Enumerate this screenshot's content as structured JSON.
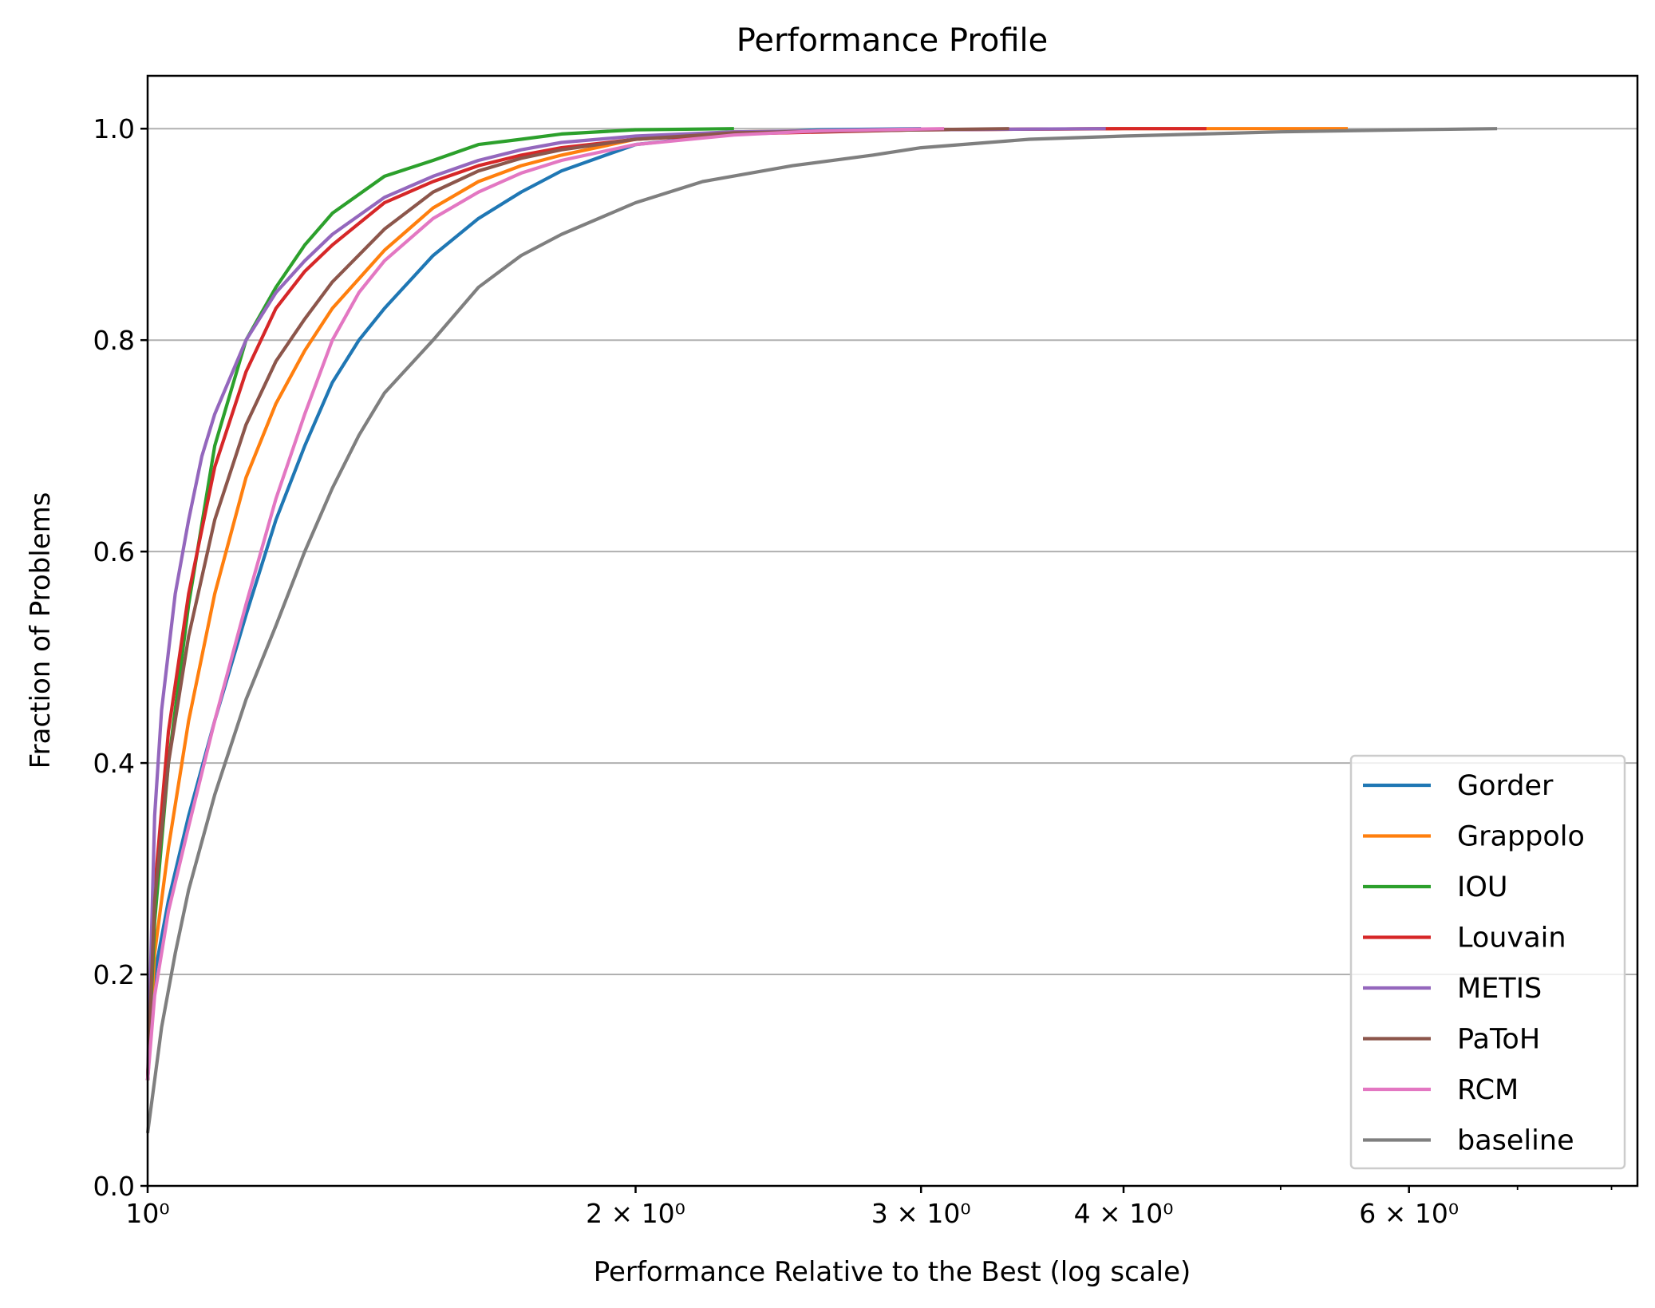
{
  "chart_data": {
    "type": "line",
    "title": "Performance Profile",
    "xlabel": "Performance Relative to the Best (log scale)",
    "ylabel": "Fraction of Problems",
    "xscale": "log",
    "xlim": [
      1.0,
      8.3
    ],
    "ylim": [
      0.0,
      1.05
    ],
    "grid": "y-major",
    "legend_position": "lower-right",
    "x_ticks": [
      {
        "value": 1,
        "label": "10⁰"
      },
      {
        "value": 2,
        "label": "2 × 10⁰"
      },
      {
        "value": 3,
        "label": "3 × 10⁰"
      },
      {
        "value": 4,
        "label": "4 × 10⁰"
      },
      {
        "value": 6,
        "label": "6 × 10⁰"
      }
    ],
    "x_minor_ticks": [
      5,
      7,
      8
    ],
    "y_ticks": [
      {
        "value": 0.0,
        "label": "0.0"
      },
      {
        "value": 0.2,
        "label": "0.2"
      },
      {
        "value": 0.4,
        "label": "0.4"
      },
      {
        "value": 0.6,
        "label": "0.6"
      },
      {
        "value": 0.8,
        "label": "0.8"
      },
      {
        "value": 1.0,
        "label": "1.0"
      }
    ],
    "series": [
      {
        "name": "Gorder",
        "color": "#1f77b4",
        "x": [
          1.0,
          1.01,
          1.03,
          1.06,
          1.1,
          1.15,
          1.2,
          1.25,
          1.3,
          1.35,
          1.4,
          1.5,
          1.6,
          1.7,
          1.8,
          2.0,
          2.3,
          2.6,
          3.0
        ],
        "y": [
          0.1,
          0.2,
          0.27,
          0.35,
          0.44,
          0.54,
          0.63,
          0.7,
          0.76,
          0.8,
          0.83,
          0.88,
          0.915,
          0.94,
          0.96,
          0.985,
          0.995,
          0.999,
          1.0
        ]
      },
      {
        "name": "Grappolo",
        "color": "#ff7f0e",
        "x": [
          1.0,
          1.01,
          1.03,
          1.06,
          1.1,
          1.15,
          1.2,
          1.25,
          1.3,
          1.4,
          1.5,
          1.6,
          1.7,
          1.8,
          2.0,
          2.3,
          3.0,
          4.0,
          5.5
        ],
        "y": [
          0.1,
          0.22,
          0.32,
          0.44,
          0.56,
          0.67,
          0.74,
          0.79,
          0.83,
          0.885,
          0.925,
          0.95,
          0.965,
          0.975,
          0.99,
          0.997,
          0.999,
          1.0,
          1.0
        ]
      },
      {
        "name": "IOU",
        "color": "#2ca02c",
        "x": [
          1.0,
          1.01,
          1.03,
          1.06,
          1.1,
          1.15,
          1.2,
          1.25,
          1.3,
          1.4,
          1.5,
          1.6,
          1.7,
          1.8,
          2.0,
          2.3
        ],
        "y": [
          0.1,
          0.25,
          0.4,
          0.55,
          0.7,
          0.8,
          0.85,
          0.89,
          0.92,
          0.955,
          0.97,
          0.985,
          0.99,
          0.995,
          0.999,
          1.0
        ]
      },
      {
        "name": "Louvain",
        "color": "#d62728",
        "x": [
          1.0,
          1.01,
          1.03,
          1.06,
          1.1,
          1.15,
          1.2,
          1.25,
          1.3,
          1.4,
          1.5,
          1.6,
          1.7,
          1.8,
          2.0,
          2.3,
          3.0,
          4.0,
          4.5
        ],
        "y": [
          0.1,
          0.28,
          0.43,
          0.56,
          0.68,
          0.77,
          0.83,
          0.865,
          0.89,
          0.93,
          0.95,
          0.965,
          0.975,
          0.982,
          0.99,
          0.995,
          0.999,
          1.0,
          1.0
        ]
      },
      {
        "name": "METIS",
        "color": "#9467bd",
        "x": [
          1.0,
          1.01,
          1.02,
          1.04,
          1.06,
          1.08,
          1.1,
          1.15,
          1.2,
          1.25,
          1.3,
          1.4,
          1.5,
          1.6,
          1.7,
          1.8,
          2.0,
          2.3,
          3.0,
          3.9
        ],
        "y": [
          0.1,
          0.35,
          0.45,
          0.56,
          0.63,
          0.69,
          0.73,
          0.8,
          0.845,
          0.875,
          0.9,
          0.935,
          0.955,
          0.97,
          0.98,
          0.987,
          0.993,
          0.997,
          0.999,
          1.0
        ]
      },
      {
        "name": "PaToH",
        "color": "#8c564b",
        "x": [
          1.0,
          1.01,
          1.03,
          1.06,
          1.1,
          1.15,
          1.2,
          1.25,
          1.3,
          1.4,
          1.5,
          1.6,
          1.7,
          1.8,
          2.0,
          2.3,
          3.0,
          3.4
        ],
        "y": [
          0.1,
          0.27,
          0.4,
          0.52,
          0.63,
          0.72,
          0.78,
          0.82,
          0.855,
          0.905,
          0.94,
          0.96,
          0.972,
          0.98,
          0.99,
          0.996,
          0.999,
          1.0
        ]
      },
      {
        "name": "RCM",
        "color": "#e377c2",
        "x": [
          1.0,
          1.01,
          1.03,
          1.06,
          1.1,
          1.15,
          1.2,
          1.25,
          1.3,
          1.35,
          1.4,
          1.5,
          1.6,
          1.7,
          1.8,
          2.0,
          2.3,
          2.6,
          3.1
        ],
        "y": [
          0.1,
          0.18,
          0.26,
          0.34,
          0.44,
          0.55,
          0.65,
          0.73,
          0.8,
          0.845,
          0.875,
          0.915,
          0.94,
          0.958,
          0.97,
          0.985,
          0.994,
          0.998,
          1.0
        ]
      },
      {
        "name": "baseline",
        "color": "#7f7f7f",
        "x": [
          1.0,
          1.01,
          1.02,
          1.04,
          1.06,
          1.1,
          1.15,
          1.2,
          1.25,
          1.3,
          1.35,
          1.4,
          1.5,
          1.6,
          1.7,
          1.8,
          2.0,
          2.2,
          2.5,
          2.8,
          3.0,
          3.5,
          4.0,
          5.0,
          6.0,
          6.8
        ],
        "y": [
          0.05,
          0.1,
          0.15,
          0.22,
          0.28,
          0.37,
          0.46,
          0.53,
          0.6,
          0.66,
          0.71,
          0.75,
          0.8,
          0.85,
          0.88,
          0.9,
          0.93,
          0.95,
          0.965,
          0.975,
          0.982,
          0.99,
          0.993,
          0.997,
          0.999,
          1.0
        ]
      }
    ]
  }
}
